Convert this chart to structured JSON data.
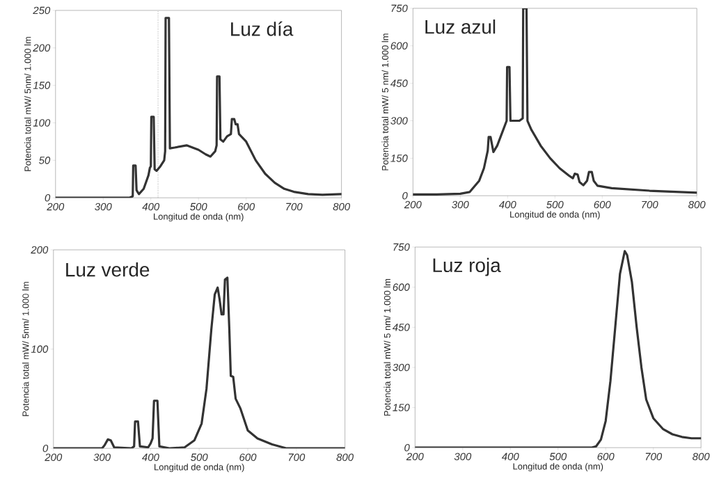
{
  "chart_data": [
    {
      "type": "line",
      "title": "Luz día",
      "xlabel": "Longitud de onda (nm)",
      "ylabel": "Potencia total mW/ 5nm/ 1.000 lm",
      "color": "#333333",
      "xlim": [
        200,
        800
      ],
      "ylim": [
        0,
        250
      ],
      "xticks": [
        200,
        300,
        400,
        500,
        600,
        700,
        800
      ],
      "yticks": [
        0,
        50,
        100,
        150,
        200,
        250
      ],
      "ref_lines": [
        {
          "axis": "x",
          "value": 415,
          "line_style": "dotted"
        }
      ],
      "x": [
        200,
        355,
        362,
        363,
        368,
        370,
        375,
        385,
        395,
        398,
        400,
        401,
        406,
        408,
        412,
        420,
        428,
        430,
        431,
        438,
        440,
        450,
        475,
        500,
        515,
        525,
        535,
        538,
        539,
        544,
        546,
        552,
        560,
        568,
        570,
        575,
        578,
        582,
        585,
        600,
        620,
        640,
        660,
        680,
        700,
        730,
        760,
        800
      ],
      "values": [
        0,
        0,
        2,
        43,
        43,
        10,
        5,
        12,
        30,
        40,
        42,
        108,
        108,
        38,
        36,
        42,
        50,
        62,
        240,
        240,
        66,
        67,
        70,
        64,
        58,
        55,
        62,
        70,
        162,
        162,
        78,
        75,
        82,
        85,
        105,
        105,
        98,
        98,
        85,
        75,
        50,
        32,
        20,
        12,
        8,
        5,
        4,
        5
      ]
    },
    {
      "type": "line",
      "title": "Luz azul",
      "xlabel": "Longitud de onda (nm)",
      "ylabel": "Potencia total mW/ 5 nm/ 1.000 lm",
      "color": "#333333",
      "xlim": [
        200,
        800
      ],
      "ylim": [
        0,
        750
      ],
      "xticks": [
        200,
        300,
        400,
        500,
        600,
        700,
        800
      ],
      "yticks": [
        0,
        150,
        300,
        450,
        600,
        750
      ],
      "x": [
        200,
        250,
        300,
        320,
        340,
        350,
        358,
        360,
        364,
        370,
        378,
        390,
        398,
        399,
        404,
        406,
        415,
        425,
        432,
        433,
        440,
        442,
        450,
        470,
        490,
        510,
        530,
        538,
        542,
        548,
        552,
        560,
        568,
        572,
        578,
        582,
        590,
        620,
        700,
        800
      ],
      "values": [
        5,
        5,
        8,
        15,
        60,
        110,
        180,
        235,
        235,
        175,
        200,
        260,
        300,
        515,
        515,
        300,
        300,
        300,
        310,
        750,
        750,
        300,
        265,
        200,
        150,
        110,
        80,
        70,
        88,
        85,
        55,
        42,
        60,
        95,
        95,
        60,
        40,
        30,
        20,
        12
      ]
    },
    {
      "type": "line",
      "title": "Luz verde",
      "xlabel": "Longitud de onda (nm)",
      "ylabel": "Potencia total mW/ 5nm/ 1.000 lm",
      "color": "#333333",
      "xlim": [
        200,
        800
      ],
      "ylim": [
        0,
        200
      ],
      "xticks": [
        200,
        300,
        400,
        500,
        600,
        700,
        800
      ],
      "yticks": [
        0,
        100,
        200
      ],
      "x": [
        200,
        300,
        305,
        312,
        318,
        325,
        360,
        366,
        368,
        374,
        378,
        395,
        400,
        404,
        407,
        414,
        418,
        440,
        470,
        490,
        505,
        515,
        525,
        532,
        538,
        542,
        546,
        550,
        553,
        558,
        562,
        565,
        570,
        575,
        585,
        600,
        620,
        650,
        680,
        800
      ],
      "values": [
        0,
        0,
        3,
        9,
        8,
        1,
        0,
        2,
        27,
        27,
        2,
        1,
        5,
        10,
        48,
        48,
        2,
        0,
        1,
        8,
        25,
        60,
        120,
        155,
        162,
        150,
        135,
        135,
        170,
        172,
        120,
        73,
        72,
        50,
        40,
        18,
        10,
        4,
        0,
        0
      ]
    },
    {
      "type": "line",
      "title": "Luz roja",
      "xlabel": "Longitud de onda (nm)",
      "ylabel": "Potencia total mW/ 5 nm/ 1.000 lm",
      "color": "#333333",
      "xlim": [
        200,
        800
      ],
      "ylim": [
        0,
        750
      ],
      "xticks": [
        200,
        300,
        400,
        500,
        600,
        700,
        800
      ],
      "yticks": [
        0,
        150,
        300,
        450,
        600,
        750
      ],
      "x": [
        200,
        570,
        580,
        590,
        600,
        610,
        620,
        630,
        640,
        645,
        655,
        665,
        675,
        685,
        700,
        720,
        740,
        760,
        780,
        800
      ],
      "values": [
        0,
        0,
        5,
        30,
        100,
        250,
        450,
        650,
        735,
        720,
        620,
        450,
        300,
        180,
        110,
        70,
        50,
        40,
        35,
        35
      ]
    }
  ]
}
